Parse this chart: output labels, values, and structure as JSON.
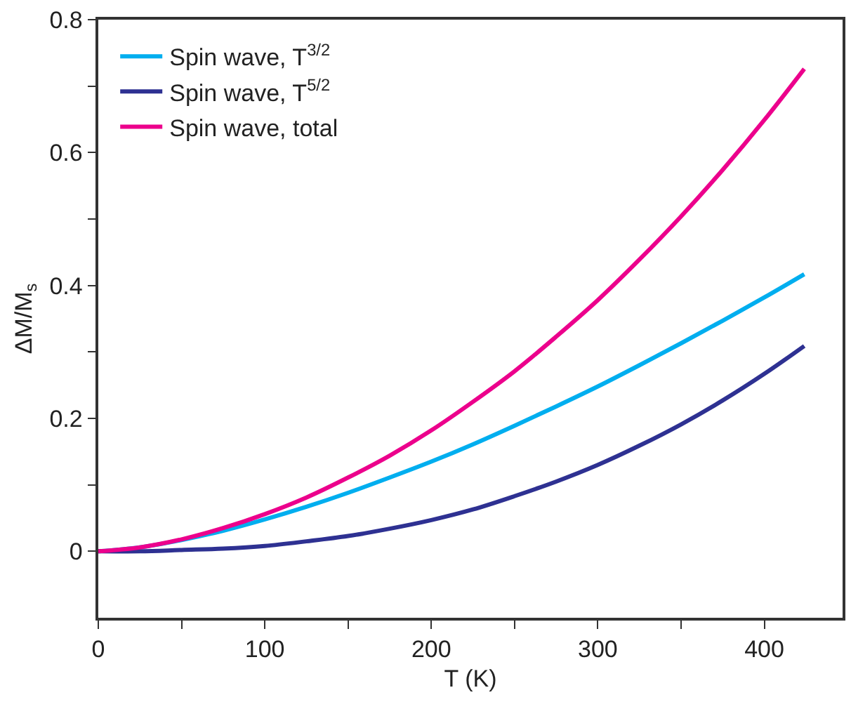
{
  "chart_data": {
    "type": "line",
    "xlabel": "T (K)",
    "ylabel": "ΔM/M$_{s}$",
    "x": [
      0,
      25,
      50,
      75,
      100,
      125,
      150,
      175,
      200,
      225,
      250,
      275,
      300,
      325,
      350,
      375,
      400,
      424
    ],
    "series": [
      {
        "name": "Spin wave, T$^{3/2}$",
        "color": "#00aeef",
        "values": [
          0,
          0.006,
          0.017,
          0.031,
          0.048,
          0.067,
          0.088,
          0.111,
          0.135,
          0.161,
          0.189,
          0.218,
          0.248,
          0.28,
          0.313,
          0.347,
          0.382,
          0.417
        ]
      },
      {
        "name": "Spin wave, T$^{5/2}$",
        "color": "#2e3192",
        "values": [
          0,
          0.0,
          0.002,
          0.004,
          0.008,
          0.015,
          0.023,
          0.034,
          0.047,
          0.063,
          0.083,
          0.105,
          0.13,
          0.159,
          0.191,
          0.227,
          0.267,
          0.309
        ]
      },
      {
        "name": "Spin wave, total",
        "color": "#ec008c",
        "values": [
          0,
          0.006,
          0.018,
          0.035,
          0.056,
          0.081,
          0.111,
          0.144,
          0.182,
          0.225,
          0.271,
          0.323,
          0.378,
          0.439,
          0.504,
          0.574,
          0.649,
          0.726
        ]
      }
    ],
    "xlim": [
      0,
      447
    ],
    "ylim": [
      -0.1,
      0.8
    ],
    "xticks": [
      0,
      {
        "value": 50,
        "label": null
      },
      100,
      {
        "value": 150,
        "label": null
      },
      200,
      {
        "value": 250,
        "label": null
      },
      300,
      {
        "value": 350,
        "label": null
      },
      400
    ],
    "yticks": [
      0,
      {
        "value": 0.1,
        "label": null
      },
      0.2,
      {
        "value": 0.3,
        "label": null
      },
      0.4,
      {
        "value": 0.5,
        "label": null
      },
      0.6,
      {
        "value": 0.7,
        "label": null
      },
      0.8
    ],
    "legend": "top left",
    "marker": "none",
    "line_style": "solid"
  }
}
